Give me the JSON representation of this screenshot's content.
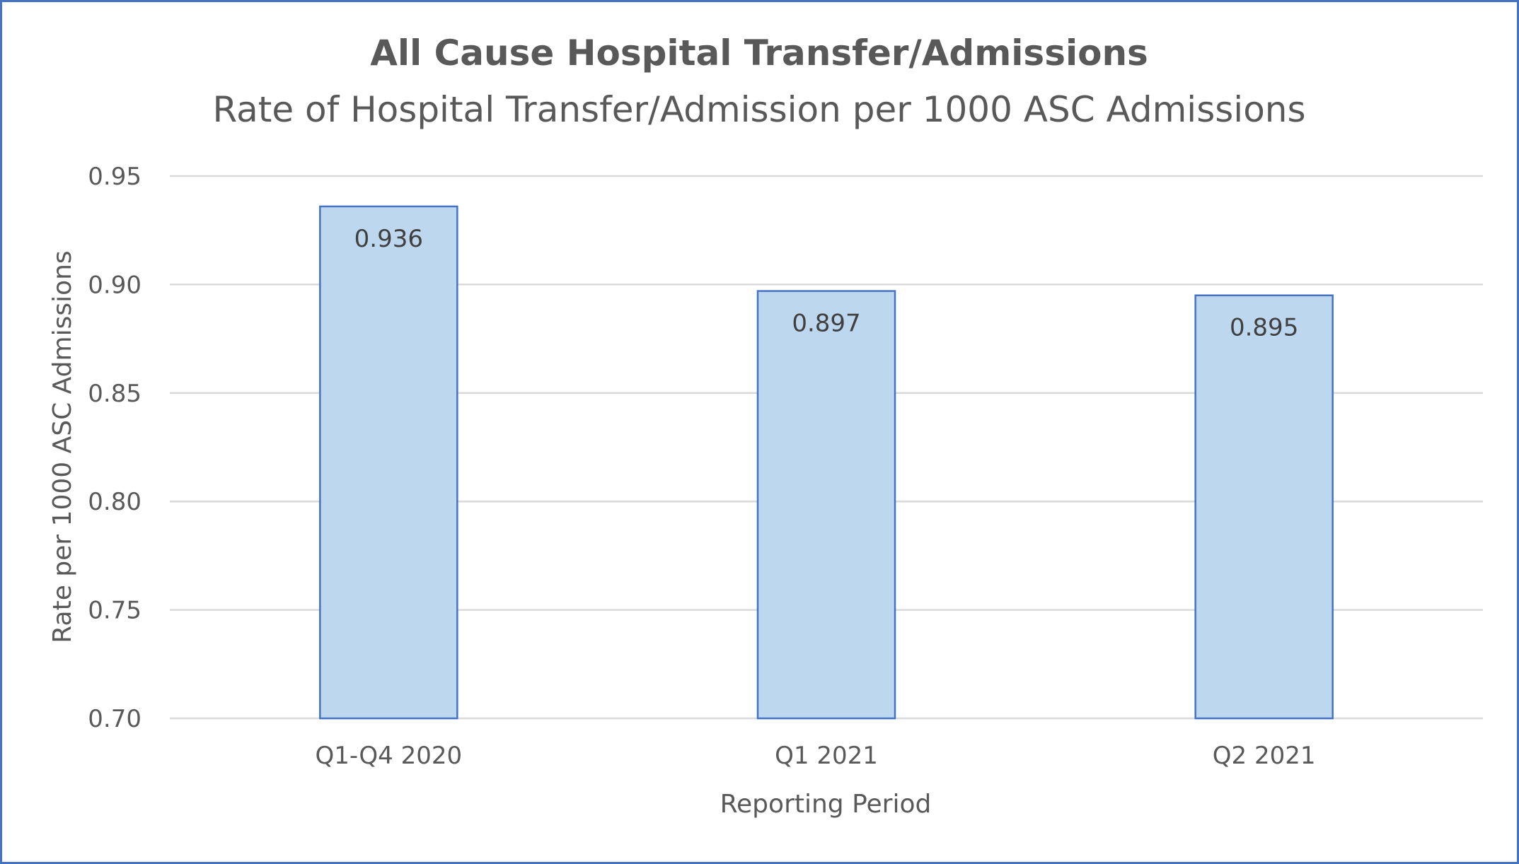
{
  "chart_data": {
    "type": "bar",
    "title": "All Cause Hospital Transfer/Admissions",
    "subtitle": "Rate of Hospital Transfer/Admission per 1000 ASC Admissions",
    "xlabel": "Reporting Period",
    "ylabel": "Rate per 1000 ASC Admissions",
    "categories": [
      "Q1-Q4 2020",
      "Q1 2021",
      "Q2 2021"
    ],
    "values": [
      0.936,
      0.897,
      0.895
    ],
    "data_labels": [
      "0.936",
      "0.897",
      "0.895"
    ],
    "ylim": [
      0.7,
      0.95
    ],
    "yticks": [
      "0.70",
      "0.75",
      "0.80",
      "0.85",
      "0.90",
      "0.95"
    ],
    "grid": true,
    "legend": "none",
    "colors": {
      "bar_fill": "#bdd7ee",
      "bar_stroke": "#4472c4",
      "border": "#4472c4"
    }
  }
}
